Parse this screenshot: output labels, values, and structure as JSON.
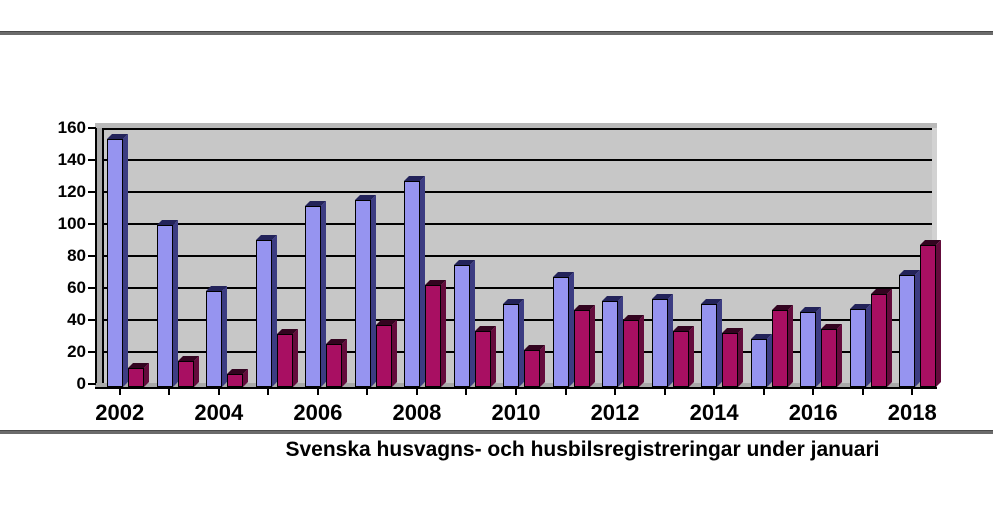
{
  "caption": {
    "text": "Svenska husvagns- och husbilsregistreringar under januari"
  },
  "chart_data": {
    "type": "bar",
    "title": "Svenska husvagns- och husbilsregistreringar under januari",
    "categories": [
      "2002",
      "2003",
      "2004",
      "2005",
      "2006",
      "2007",
      "2008",
      "2009",
      "2010",
      "2011",
      "2012",
      "2013",
      "2014",
      "2015",
      "2016",
      "2017",
      "2018"
    ],
    "x_tick_labels": [
      "2002",
      "2004",
      "2006",
      "2008",
      "2010",
      "2012",
      "2014",
      "2016",
      "2018"
    ],
    "series": [
      {
        "name": "purple-bars",
        "color": "#9694F0",
        "values": [
          155,
          101,
          60,
          92,
          113,
          117,
          129,
          76,
          52,
          69,
          54,
          55,
          52,
          30,
          47,
          49,
          70
        ]
      },
      {
        "name": "magenta-bars",
        "color": "#A80F62",
        "values": [
          12,
          16,
          8,
          33,
          27,
          39,
          64,
          35,
          23,
          48,
          42,
          35,
          34,
          48,
          36,
          58,
          89
        ]
      }
    ],
    "ylim": [
      0,
      160
    ],
    "y_ticks": [
      0,
      20,
      40,
      60,
      80,
      100,
      120,
      140,
      160
    ],
    "grid": "horizontal",
    "legend_position": "none",
    "plot_background": "#C7C7C7",
    "style": "3d-effect"
  }
}
